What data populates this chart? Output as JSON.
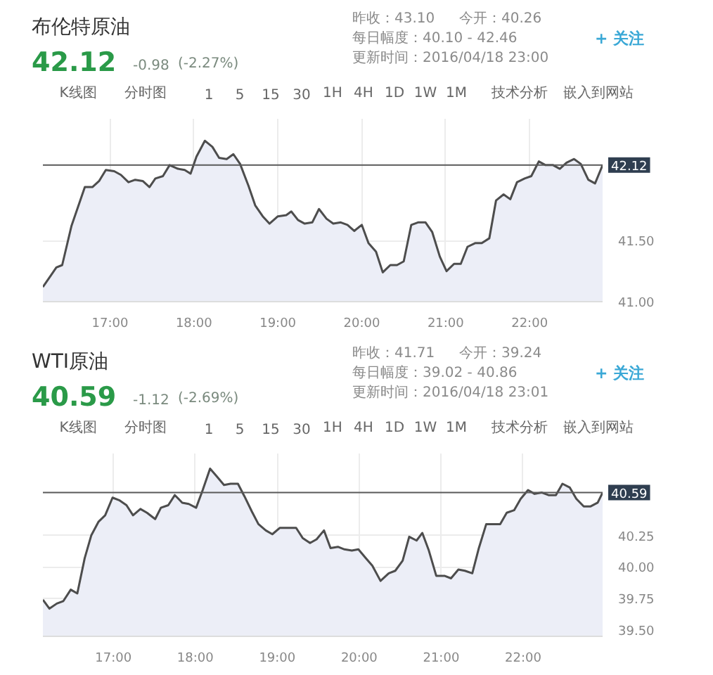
{
  "chart_data": [
    {
      "type": "area",
      "title": "布伦特原油",
      "annotations": [
        "42.12",
        "-0.98",
        "(-2.27%)",
        "昨收：43.10",
        "今开：40.26",
        "每日幅度：40.10 - 42.46",
        "更新时间：2016/04/18 23:00",
        "+ 关注",
        "K线图",
        "分时图",
        "1",
        "5",
        "15",
        "30",
        "1H",
        "4H",
        "1D",
        "1W",
        "1M",
        "技术分析",
        "嵌入到网站"
      ],
      "x": [
        16.2,
        16.29,
        16.36,
        16.43,
        16.54,
        16.7,
        16.79,
        16.87,
        16.95,
        17.05,
        17.13,
        17.22,
        17.3,
        17.39,
        17.47,
        17.54,
        17.63,
        17.71,
        17.81,
        17.89,
        17.96,
        18.03,
        18.13,
        18.22,
        18.3,
        18.39,
        18.47,
        18.55,
        18.65,
        18.73,
        18.82,
        18.9,
        19.0,
        19.1,
        19.16,
        19.24,
        19.32,
        19.41,
        19.49,
        19.58,
        19.66,
        19.75,
        19.83,
        19.91,
        20.0,
        20.08,
        20.17,
        20.25,
        20.34,
        20.42,
        20.5,
        20.59,
        20.67,
        20.76,
        20.84,
        20.93,
        21.01,
        21.1,
        21.18,
        21.26,
        21.35,
        21.43,
        21.52,
        21.6,
        21.69,
        21.77,
        21.85,
        21.94,
        22.02,
        22.11,
        22.19,
        22.28,
        22.36,
        22.44,
        22.53,
        22.61,
        22.7,
        22.78,
        22.87
      ],
      "values": [
        41.12,
        41.21,
        41.28,
        41.3,
        41.62,
        41.94,
        41.94,
        41.99,
        42.08,
        42.07,
        42.04,
        41.98,
        42.0,
        41.99,
        41.94,
        42.01,
        42.03,
        42.12,
        42.09,
        42.08,
        42.05,
        42.19,
        42.32,
        42.27,
        42.18,
        42.17,
        42.21,
        42.13,
        41.95,
        41.79,
        41.7,
        41.64,
        41.7,
        41.71,
        41.74,
        41.67,
        41.64,
        41.65,
        41.76,
        41.68,
        41.64,
        41.65,
        41.63,
        41.58,
        41.63,
        41.48,
        41.41,
        41.24,
        41.3,
        41.3,
        41.33,
        41.63,
        41.65,
        41.65,
        41.57,
        41.37,
        41.25,
        41.31,
        41.31,
        41.45,
        41.48,
        41.48,
        41.52,
        41.83,
        41.88,
        41.84,
        41.98,
        42.01,
        42.03,
        42.15,
        42.12,
        42.12,
        42.09,
        42.14,
        42.17,
        42.13,
        42.0,
        41.97,
        42.12
      ],
      "color": "#4d4d4d",
      "xlim": [
        16.2,
        22.87
      ],
      "ylim": [
        41.0,
        42.5
      ],
      "xticks": [
        {
          "value": 17,
          "label": "17:00"
        },
        {
          "value": 18,
          "label": "18:00"
        },
        {
          "value": 19,
          "label": "19:00"
        },
        {
          "value": 20,
          "label": "20:00"
        },
        {
          "value": 21,
          "label": "21:00"
        },
        {
          "value": 22,
          "label": "22:00"
        }
      ],
      "yticks": [
        {
          "value": 41.0,
          "label": "41.00"
        },
        {
          "value": 41.5,
          "label": "41.50"
        }
      ],
      "grid": true,
      "ref_lines": [
        {
          "axis": "y",
          "value": 42.12,
          "label": "42.12",
          "color": "#5a5a5a"
        }
      ]
    },
    {
      "type": "area",
      "title": "WTI原油",
      "annotations": [
        "40.59",
        "-1.12",
        "(-2.69%)",
        "昨收：41.71",
        "今开：39.24",
        "每日幅度：39.02 - 40.86",
        "更新时间：2016/04/18 23:01",
        "+ 关注",
        "K线图",
        "分时图",
        "1",
        "5",
        "15",
        "30",
        "1H",
        "4H",
        "1D",
        "1W",
        "1M",
        "技术分析",
        "嵌入到网站"
      ],
      "x": [
        16.14,
        16.22,
        16.31,
        16.39,
        16.48,
        16.56,
        16.65,
        16.73,
        16.82,
        16.9,
        16.99,
        17.07,
        17.16,
        17.24,
        17.33,
        17.41,
        17.51,
        17.58,
        17.67,
        17.75,
        17.84,
        17.92,
        18.01,
        18.09,
        18.18,
        18.26,
        18.35,
        18.43,
        18.52,
        18.6,
        18.69,
        18.77,
        18.86,
        18.94,
        19.03,
        19.11,
        19.23,
        19.31,
        19.4,
        19.48,
        19.57,
        19.65,
        19.74,
        19.82,
        19.91,
        19.99,
        20.08,
        20.16,
        20.26,
        20.36,
        20.44,
        20.53,
        20.61,
        20.7,
        20.77,
        20.85,
        20.94,
        21.04,
        21.12,
        21.21,
        21.29,
        21.38,
        21.46,
        21.55,
        21.63,
        21.72,
        21.8,
        21.89,
        21.97,
        22.06,
        22.14,
        22.23,
        22.31,
        22.4,
        22.48,
        22.57,
        22.65,
        22.74,
        22.82,
        22.91,
        22.97
      ],
      "values": [
        39.74,
        39.67,
        39.71,
        39.73,
        39.82,
        39.79,
        40.07,
        40.25,
        40.36,
        40.41,
        40.55,
        40.53,
        40.49,
        40.41,
        40.46,
        40.43,
        40.38,
        40.47,
        40.49,
        40.57,
        40.51,
        40.5,
        40.47,
        40.61,
        40.78,
        40.72,
        40.65,
        40.66,
        40.66,
        40.56,
        40.44,
        40.34,
        40.29,
        40.26,
        40.31,
        40.31,
        40.31,
        40.23,
        40.19,
        40.22,
        40.29,
        40.15,
        40.16,
        40.14,
        40.13,
        40.14,
        40.07,
        40.01,
        39.89,
        39.95,
        39.97,
        40.05,
        40.24,
        40.21,
        40.27,
        40.13,
        39.93,
        39.93,
        39.91,
        39.98,
        39.97,
        39.95,
        40.15,
        40.34,
        40.34,
        40.34,
        40.43,
        40.45,
        40.54,
        40.61,
        40.58,
        40.59,
        40.57,
        40.57,
        40.66,
        40.63,
        40.54,
        40.48,
        40.48,
        40.51,
        40.59
      ],
      "color": "#4d4d4d",
      "xlim": [
        16.14,
        22.97
      ],
      "ylim": [
        39.45,
        40.9
      ],
      "xticks": [
        {
          "value": 17,
          "label": "17:00"
        },
        {
          "value": 18,
          "label": "18:00"
        },
        {
          "value": 19,
          "label": "19:00"
        },
        {
          "value": 20,
          "label": "20:00"
        },
        {
          "value": 21,
          "label": "21:00"
        },
        {
          "value": 22,
          "label": "22:00"
        }
      ],
      "yticks": [
        {
          "value": 39.5,
          "label": "39.50"
        },
        {
          "value": 39.75,
          "label": "39.75"
        },
        {
          "value": 40.0,
          "label": "40.00"
        },
        {
          "value": 40.25,
          "label": "40.25"
        }
      ],
      "grid": true,
      "ref_lines": [
        {
          "axis": "y",
          "value": 40.59,
          "label": "40.59",
          "color": "#5a5a5a"
        }
      ]
    }
  ]
}
